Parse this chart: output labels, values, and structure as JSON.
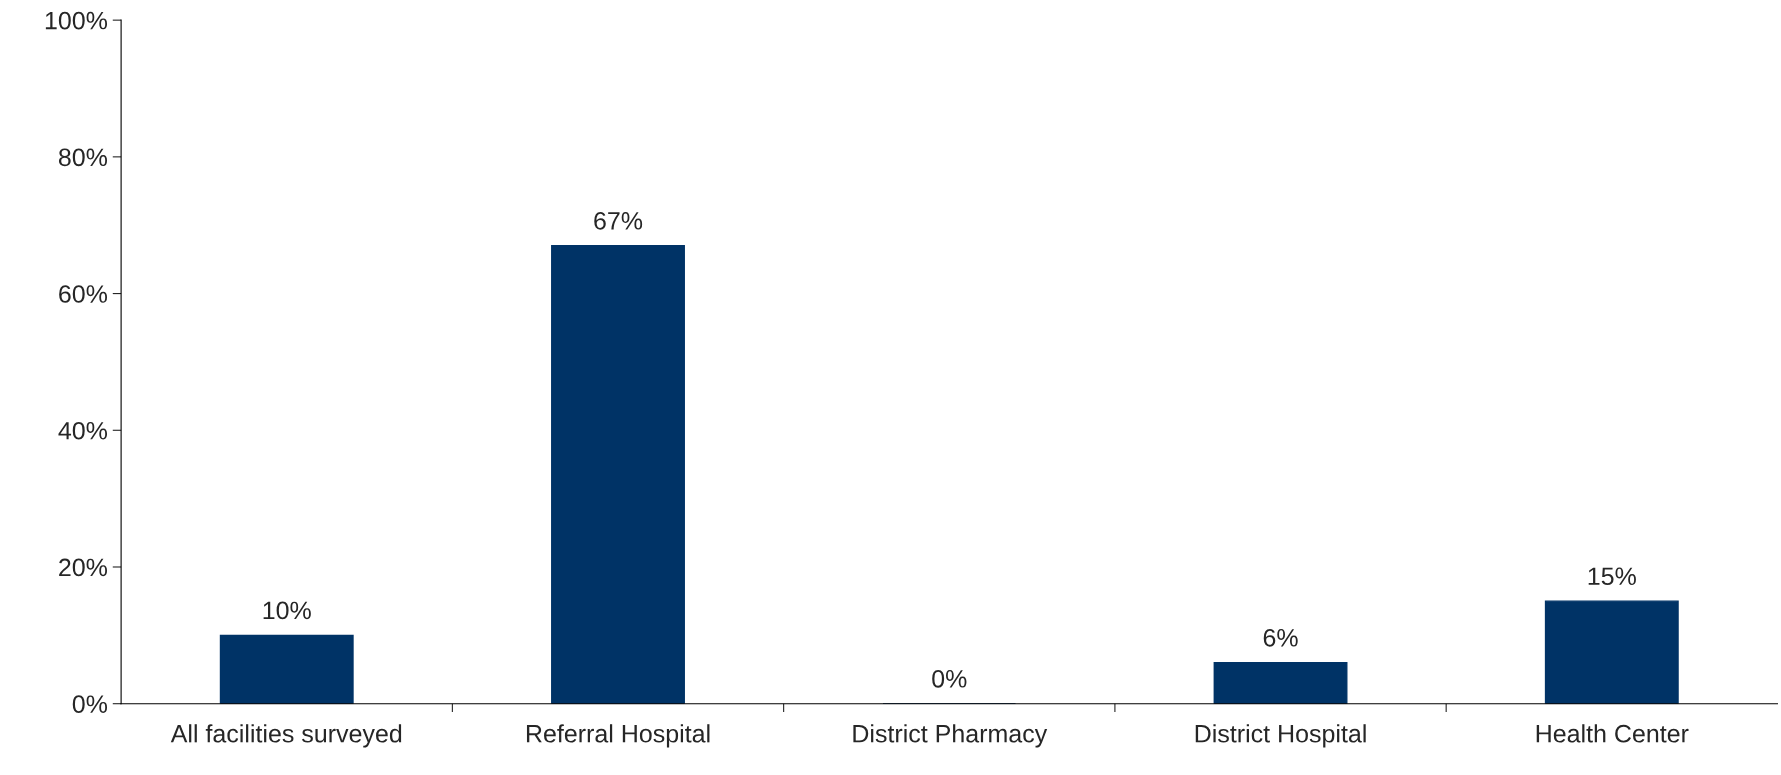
{
  "chart_data": {
    "type": "bar",
    "categories": [
      "All facilities surveyed",
      "Referral Hospital",
      "District Pharmacy",
      "District Hospital",
      "Health Center"
    ],
    "values": [
      10,
      67,
      0,
      6,
      15
    ],
    "color": "#003366",
    "ylim": [
      0,
      100
    ],
    "yticks": [
      {
        "value": 0,
        "label": "0%"
      },
      {
        "value": 20,
        "label": "20%"
      },
      {
        "value": 40,
        "label": "40%"
      },
      {
        "value": 60,
        "label": "60%"
      },
      {
        "value": 80,
        "label": "80%"
      },
      {
        "value": 100,
        "label": "100%"
      }
    ],
    "value_labels": [
      "10%",
      "67%",
      "0%",
      "6%",
      "15%"
    ],
    "grid": false
  }
}
